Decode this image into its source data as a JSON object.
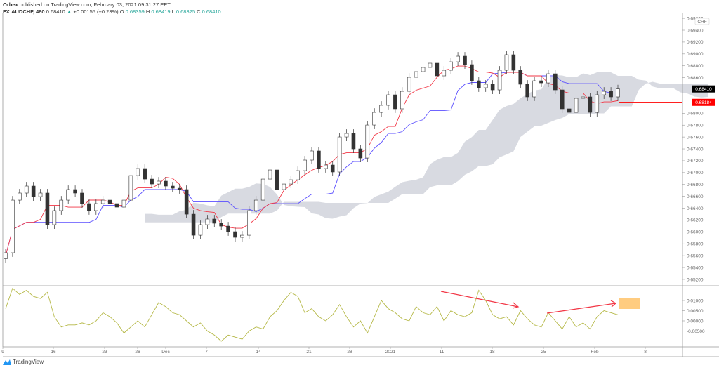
{
  "header": {
    "publisher": "Orbex",
    "published_text": "published on TradingView.com, February 03, 2021 09:31:27 EET",
    "symbol": "FX:AUDCHF, 480",
    "last": "0.68410",
    "change_icon": "triangle-up-icon",
    "change": "+0.00155 (+0.23%)",
    "ohlc": {
      "o_label": "O:",
      "o": "0.68359",
      "h_label": "H:",
      "h": "0.68419",
      "l_label": "L:",
      "l": "0.68325",
      "c_label": "C:",
      "c": "0.68410"
    }
  },
  "price_axis": {
    "currency": "CHF",
    "ticks": [
      "0.69600",
      "0.69400",
      "0.69200",
      "0.69000",
      "0.68800",
      "0.68600",
      "0.68000",
      "0.67800",
      "0.67600",
      "0.67400",
      "0.67200",
      "0.67000",
      "0.66800",
      "0.66600",
      "0.66400",
      "0.66200",
      "0.66000",
      "0.65800",
      "0.65600",
      "0.65400",
      "0.65200"
    ],
    "last_price_label": "0.68410",
    "horizontal_line_label": "0.68184"
  },
  "oscillator_axis": {
    "ticks": [
      "0.01000",
      "0.00500",
      "0.00000",
      "-0.00500"
    ]
  },
  "time_axis": {
    "labels": [
      "9",
      "16",
      "23",
      "26",
      "Dec",
      "7",
      "14",
      "21",
      "28",
      "2021",
      "11",
      "18",
      "25",
      "Feb",
      "8"
    ]
  },
  "footer": {
    "logo_text": "TradingView"
  },
  "colors": {
    "up": "#26a69a",
    "tenkan": "#f23645",
    "kijun": "#5b4fff",
    "cloud": "#d1d4dc",
    "oscillator": "#b5b846",
    "annotation": "#f23645",
    "highlight": "#ffcc80",
    "last_price_bg": "#000000",
    "hline": "#ff0000"
  },
  "chart_data": {
    "type": "candlestick",
    "price_range": [
      0.65093,
      0.69696
    ],
    "closes": [
      0.65649,
      0.66536,
      0.66655,
      0.66773,
      0.66595,
      0.66655,
      0.66122,
      0.66359,
      0.66536,
      0.66714,
      0.66655,
      0.66477,
      0.66359,
      0.66477,
      0.66536,
      0.66477,
      0.66418,
      0.66536,
      0.6695,
      0.67069,
      0.66891,
      0.66808,
      0.66856,
      0.66773,
      0.66737,
      0.66714,
      0.66299,
      0.65944,
      0.66122,
      0.66217,
      0.66146,
      0.66098,
      0.66004,
      0.65909,
      0.65944,
      0.66359,
      0.66536,
      0.66891,
      0.67045,
      0.66714,
      0.66808,
      0.66879,
      0.67033,
      0.67211,
      0.67365,
      0.67069,
      0.67128,
      0.6701,
      0.67601,
      0.6766,
      0.674,
      0.67246,
      0.67802,
      0.68015,
      0.68134,
      0.68311,
      0.68075,
      0.6837,
      0.68607,
      0.68702,
      0.68773,
      0.68844,
      0.68631,
      0.68725,
      0.68867,
      0.68962,
      0.6882,
      0.68548,
      0.6843,
      0.68489,
      0.68394,
      0.68725,
      0.68986,
      0.68725,
      0.68489,
      0.68276,
      0.68548,
      0.68512,
      0.68666,
      0.68394,
      0.68075,
      0.68015,
      0.68252,
      0.68276,
      0.68015,
      0.68311,
      0.6837,
      0.68276,
      0.6841
    ],
    "horizontal_line": 0.68184,
    "oscillator": {
      "range": [
        -0.01276,
        0.01724
      ],
      "values": [
        0.006,
        0.016,
        0.013,
        0.015,
        0.012,
        0.011,
        0.014,
        0.002,
        -0.003,
        -0.002,
        -0.002,
        -0.001,
        -0.002,
        0.0,
        0.004,
        0.002,
        -0.001,
        -0.006,
        -0.003,
        0.0,
        -0.003,
        0.003,
        0.009,
        0.007,
        0.004,
        0.003,
        0.0,
        -0.003,
        -0.001,
        -0.005,
        -0.007,
        -0.01,
        -0.007,
        -0.008,
        -0.009,
        -0.005,
        -0.003,
        -0.004,
        0.002,
        0.005,
        0.01,
        0.014,
        0.012,
        0.004,
        0.006,
        0.002,
        0.0,
        0.003,
        0.008,
        0.002,
        -0.003,
        0.0,
        -0.006,
        0.002,
        0.01,
        0.006,
        0.004,
        0.001,
        0.0,
        0.007,
        0.004,
        0.003,
        0.007,
        0.0,
        0.005,
        0.003,
        0.002,
        0.004,
        0.015,
        0.01,
        0.003,
        0.001,
        0.002,
        -0.002,
        0.005,
        0.001,
        -0.002,
        -0.003,
        0.004,
        0.0,
        -0.004,
        0.002,
        -0.003,
        -0.001,
        -0.004,
        0.002,
        0.005,
        0.004,
        0.003
      ]
    }
  }
}
